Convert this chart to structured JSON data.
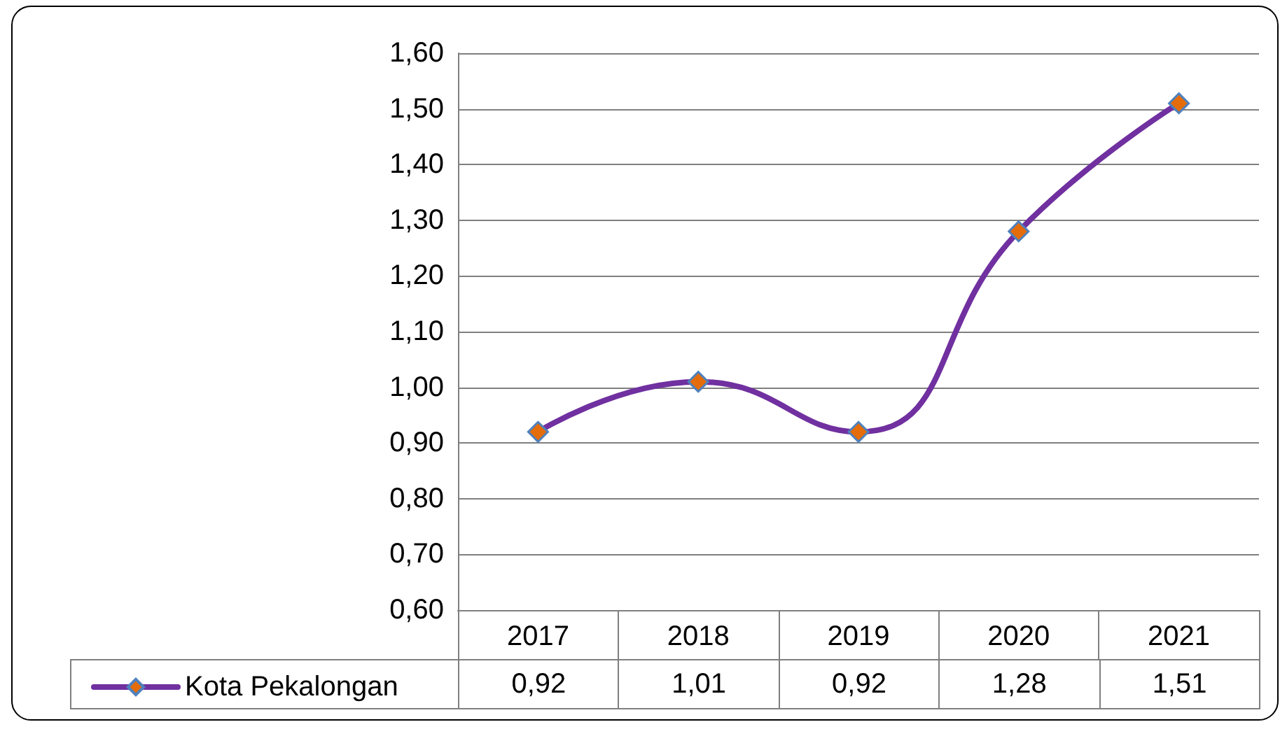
{
  "chart_data": {
    "type": "line",
    "categories": [
      "2017",
      "2018",
      "2019",
      "2020",
      "2021"
    ],
    "series": [
      {
        "name": "Kota Pekalongan",
        "color": "#7030a0",
        "values": [
          0.92,
          1.01,
          0.92,
          1.28,
          1.51
        ],
        "value_labels": [
          "0,92",
          "1,01",
          "0,92",
          "1,28",
          "1,51"
        ]
      }
    ],
    "ylim": [
      0.6,
      1.6
    ],
    "yticks": [
      {
        "value": 0.6,
        "label": "0,60"
      },
      {
        "value": 0.7,
        "label": "0,70"
      },
      {
        "value": 0.8,
        "label": "0,80"
      },
      {
        "value": 0.9,
        "label": "0,90"
      },
      {
        "value": 1.0,
        "label": "1,00"
      },
      {
        "value": 1.1,
        "label": "1,10"
      },
      {
        "value": 1.2,
        "label": "1,20"
      },
      {
        "value": 1.3,
        "label": "1,30"
      },
      {
        "value": 1.4,
        "label": "1,40"
      },
      {
        "value": 1.5,
        "label": "1,50"
      },
      {
        "value": 1.6,
        "label": "1,60"
      }
    ],
    "grid": "y",
    "legend": "bottom left",
    "marker": "diamond",
    "line_style": "solid"
  }
}
